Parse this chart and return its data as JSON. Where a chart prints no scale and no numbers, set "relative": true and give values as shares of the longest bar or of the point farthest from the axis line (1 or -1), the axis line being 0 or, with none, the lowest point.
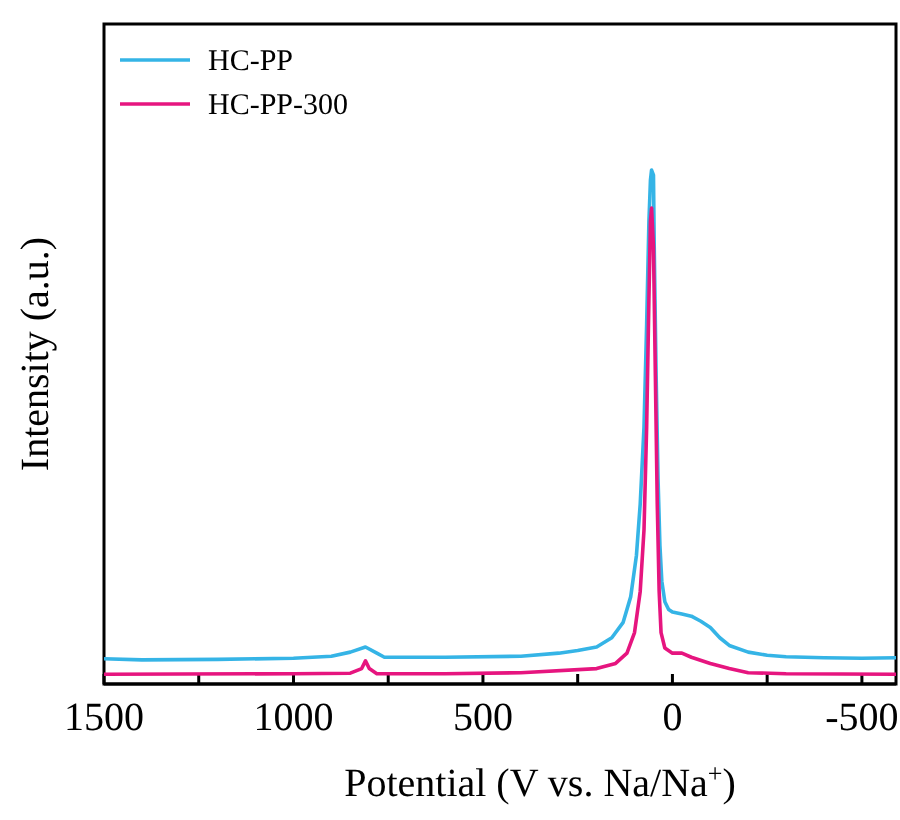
{
  "chart_data": {
    "type": "line",
    "xlabel": "Potential (V vs. Na/Na$^{+}$)",
    "ylabel": "Intensity (a.u.)",
    "relative": true,
    "legend": "top left",
    "line_style": "solid",
    "xlim": [
      1500,
      -590
    ],
    "xticks": [
      1500,
      {
        "value": 1250,
        "label": null
      },
      1000,
      {
        "value": 750,
        "label": null
      },
      500,
      {
        "value": 250,
        "label": null
      },
      0,
      {
        "value": -250,
        "label": null
      },
      -500
    ],
    "series": [
      {
        "name": "HC-PP",
        "color": "#35b4e6",
        "x": [
          1500,
          1400,
          1200,
          1000,
          900,
          850,
          810,
          780,
          760,
          600,
          400,
          300,
          250,
          200,
          160,
          130,
          110,
          95,
          85,
          75,
          68,
          62,
          58,
          55,
          50,
          48,
          43,
          38,
          33,
          28,
          20,
          10,
          0,
          -25,
          -50,
          -75,
          -100,
          -125,
          -150,
          -200,
          -250,
          -300,
          -400,
          -500,
          -590
        ],
        "values": [
          0.049,
          0.047,
          0.048,
          0.05,
          0.054,
          0.062,
          0.072,
          0.06,
          0.052,
          0.052,
          0.054,
          0.06,
          0.065,
          0.072,
          0.09,
          0.12,
          0.17,
          0.25,
          0.35,
          0.5,
          0.7,
          0.9,
          0.98,
          1,
          0.99,
          0.85,
          0.6,
          0.4,
          0.27,
          0.2,
          0.16,
          0.145,
          0.14,
          0.136,
          0.132,
          0.122,
          0.11,
          0.09,
          0.075,
          0.062,
          0.056,
          0.053,
          0.051,
          0.05,
          0.051
        ]
      },
      {
        "name": "HC-PP-300",
        "color": "#e6157f",
        "x": [
          1500,
          1000,
          850,
          820,
          810,
          800,
          780,
          600,
          400,
          200,
          150,
          120,
          100,
          85,
          75,
          68,
          62,
          58,
          55,
          50,
          45,
          40,
          35,
          30,
          20,
          0,
          -25,
          -50,
          -100,
          -150,
          -200,
          -300,
          -590
        ],
        "values": [
          0.019,
          0.02,
          0.021,
          0.03,
          0.045,
          0.03,
          0.02,
          0.02,
          0.022,
          0.03,
          0.04,
          0.06,
          0.1,
          0.18,
          0.3,
          0.5,
          0.75,
          0.9,
          0.926,
          0.85,
          0.6,
          0.35,
          0.18,
          0.1,
          0.07,
          0.06,
          0.06,
          0.052,
          0.04,
          0.03,
          0.022,
          0.02,
          0.019
        ]
      }
    ]
  }
}
